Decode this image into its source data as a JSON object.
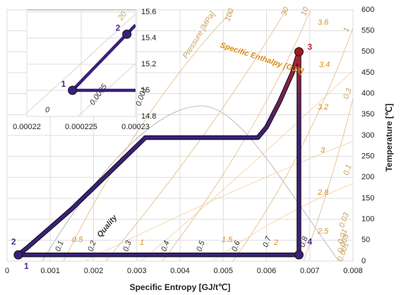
{
  "chart_data": {
    "type": "line",
    "x_label": "Specific Entropy [GJ/t℃]",
    "y_label": "Temperature [℃]",
    "xlim": [
      0,
      0.008
    ],
    "xticks": [
      0,
      0.001,
      0.002,
      0.003,
      0.004,
      0.005,
      0.006,
      0.007,
      0.008
    ],
    "ylim": [
      0,
      600
    ],
    "yticks": [
      0,
      50,
      100,
      150,
      200,
      250,
      300,
      350,
      400,
      450,
      500,
      550,
      600
    ],
    "grid": true,
    "series": [
      {
        "color": "#3b1f7a",
        "hot_color": "#b3202a",
        "x": [
          0.00026,
          0.0005,
          0.001,
          0.0015,
          0.002,
          0.0025,
          0.0032,
          0.0058,
          0.006,
          0.0063,
          0.0066,
          0.00675,
          0.00675,
          0.00026
        ],
        "values": [
          15,
          35,
          80,
          125,
          175,
          225,
          295,
          295,
          320,
          380,
          450,
          500,
          15,
          15
        ]
      }
    ],
    "points": [
      {
        "label": "2",
        "x": 0.00026,
        "y": 15
      },
      {
        "label": "3",
        "x": 0.00675,
        "y": 500
      },
      {
        "label": "4",
        "x": 0.00675,
        "y": 15
      }
    ],
    "base_point_label": "1",
    "pressure_title": "Pressure [MPa]",
    "enthalpy_title": "Specific Enthalpy [GJ/t]",
    "quality_title": "Quality",
    "pressure_labels": [
      "100",
      "30",
      "10",
      "1",
      "0.3",
      "0.1",
      "0.03",
      "0.01",
      "0.003",
      "0.001"
    ],
    "enthalpy_labels": [
      "3.6",
      "3.4",
      "3.2",
      "3",
      "2.8",
      "2.5",
      "2",
      "1.5",
      "1",
      "0.5"
    ],
    "quality_labels": [
      "0.1",
      "0.2",
      "0.3",
      "0.4",
      "0.5",
      "0.6",
      "0.7",
      "0.8"
    ],
    "inset": {
      "xlim": [
        0.00022,
        0.00023
      ],
      "xticks": [
        0.00022,
        0.000225,
        0.00023
      ],
      "ylim": [
        14.8,
        15.6
      ],
      "yticks": [
        14.8,
        15,
        15.2,
        15.4,
        15.6
      ],
      "series": [
        {
          "color": "#3b1f7a",
          "x": [
            0.0002242,
            0.00023
          ],
          "values": [
            15,
            15.5
          ]
        },
        {
          "color": "#3b1f7a",
          "x": [
            0.0002242,
            0.00023
          ],
          "values": [
            15,
            15
          ]
        }
      ],
      "points": [
        {
          "label": "1",
          "x": 0.0002242,
          "y": 15
        },
        {
          "label": "2",
          "x": 0.0002292,
          "y": 15.43
        }
      ],
      "annotations": [
        "20",
        "0",
        "0.0005",
        "0.001"
      ]
    }
  }
}
